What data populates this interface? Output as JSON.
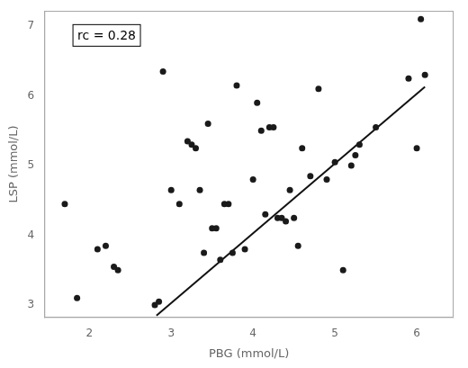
{
  "chart_data": {
    "type": "scatter",
    "xlabel": "PBG (mmol/L)",
    "ylabel": "LSP (mmol/L)",
    "annotation": "rc = 0.28",
    "series": [
      {
        "type": "scatter",
        "color": "#1a1a1a",
        "marker": "circle",
        "x": [
          1.7,
          1.85,
          2.1,
          2.2,
          2.3,
          2.35,
          2.8,
          2.85,
          2.9,
          3.0,
          3.1,
          3.2,
          3.25,
          3.3,
          3.35,
          3.4,
          3.45,
          3.5,
          3.55,
          3.6,
          3.65,
          3.7,
          3.75,
          3.8,
          3.9,
          4.0,
          4.05,
          4.1,
          4.15,
          4.2,
          4.25,
          4.3,
          4.35,
          4.4,
          4.45,
          4.5,
          4.55,
          4.6,
          4.7,
          4.8,
          4.9,
          5.0,
          5.1,
          5.2,
          5.25,
          5.3,
          5.5,
          5.9,
          6.0,
          6.05,
          6.1
        ],
        "values": [
          4.45,
          3.1,
          3.8,
          3.85,
          3.55,
          3.5,
          3.0,
          3.05,
          6.35,
          4.65,
          4.45,
          5.35,
          5.3,
          5.25,
          4.65,
          3.75,
          5.6,
          4.1,
          4.1,
          3.65,
          4.45,
          4.45,
          3.75,
          6.15,
          3.8,
          4.8,
          5.9,
          5.5,
          4.3,
          5.55,
          5.55,
          4.25,
          4.25,
          4.2,
          4.65,
          4.25,
          3.85,
          5.25,
          4.85,
          6.1,
          4.8,
          5.05,
          3.5,
          5.0,
          5.15,
          5.3,
          5.55,
          6.25,
          5.25,
          7.1,
          6.3
        ]
      },
      {
        "type": "line",
        "color": "#111111",
        "line_style": "solid",
        "x": [
          2.82,
          6.1
        ],
        "values": [
          2.85,
          6.13
        ]
      }
    ],
    "xlim": [
      1.45,
      6.45
    ],
    "ylim": [
      2.82,
      7.22
    ],
    "xticks": [
      2,
      3,
      4,
      5,
      6
    ],
    "yticks": [
      3,
      4,
      5,
      6,
      7
    ],
    "grid": false
  }
}
